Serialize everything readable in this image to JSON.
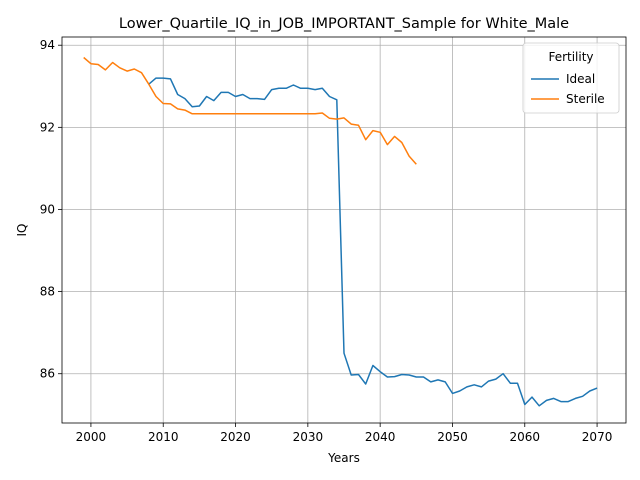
{
  "chart_data": {
    "type": "line",
    "title": "Lower_Quartile_IQ_in_JOB_IMPORTANT_Sample for White_Male",
    "xlabel": "Years",
    "ylabel": "IQ",
    "xlim": [
      1996,
      2074
    ],
    "ylim": [
      84.8,
      94.2
    ],
    "xticks": [
      2000,
      2010,
      2020,
      2030,
      2040,
      2050,
      2060,
      2070
    ],
    "yticks": [
      86,
      88,
      90,
      92,
      94
    ],
    "grid": true,
    "legend": {
      "title": "Fertility",
      "placement": "top-right"
    },
    "series": [
      {
        "name": "Ideal",
        "color": "#1f77b4",
        "x": [
          2008,
          2009,
          2010,
          2011,
          2012,
          2013,
          2014,
          2015,
          2016,
          2017,
          2018,
          2019,
          2020,
          2021,
          2022,
          2023,
          2024,
          2025,
          2026,
          2027,
          2028,
          2029,
          2030,
          2031,
          2032,
          2033,
          2034,
          2035,
          2036,
          2037,
          2038,
          2039,
          2040,
          2041,
          2042,
          2043,
          2044,
          2045,
          2046,
          2047,
          2048,
          2049,
          2050,
          2051,
          2052,
          2053,
          2054,
          2055,
          2056,
          2057,
          2058,
          2059,
          2060,
          2061,
          2062,
          2063,
          2064,
          2065,
          2066,
          2067,
          2068,
          2069,
          2070
        ],
        "values": [
          93.05,
          93.2,
          93.2,
          93.18,
          92.8,
          92.7,
          92.5,
          92.52,
          92.75,
          92.65,
          92.85,
          92.85,
          92.75,
          92.8,
          92.7,
          92.7,
          92.68,
          92.92,
          92.95,
          92.95,
          93.03,
          92.95,
          92.95,
          92.92,
          92.95,
          92.75,
          92.67,
          86.5,
          85.97,
          85.98,
          85.75,
          86.2,
          86.05,
          85.92,
          85.93,
          85.98,
          85.97,
          85.92,
          85.92,
          85.8,
          85.85,
          85.8,
          85.52,
          85.58,
          85.68,
          85.73,
          85.68,
          85.82,
          85.87,
          86.0,
          85.77,
          85.77,
          85.25,
          85.43,
          85.22,
          85.35,
          85.4,
          85.32,
          85.32,
          85.4,
          85.45,
          85.58,
          85.65
        ]
      },
      {
        "name": "Sterile",
        "color": "#ff7f0e",
        "x": [
          1999,
          2000,
          2001,
          2002,
          2003,
          2004,
          2005,
          2006,
          2007,
          2008,
          2009,
          2010,
          2011,
          2012,
          2013,
          2014,
          2015,
          2016,
          2017,
          2018,
          2019,
          2020,
          2021,
          2022,
          2023,
          2024,
          2025,
          2026,
          2027,
          2028,
          2029,
          2030,
          2031,
          2032,
          2033,
          2034,
          2035,
          2036,
          2037,
          2038,
          2039,
          2040,
          2041,
          2042,
          2043,
          2044,
          2045
        ],
        "values": [
          93.7,
          93.55,
          93.53,
          93.4,
          93.58,
          93.45,
          93.37,
          93.42,
          93.33,
          93.05,
          92.75,
          92.58,
          92.57,
          92.45,
          92.42,
          92.33,
          92.33,
          92.33,
          92.33,
          92.33,
          92.33,
          92.33,
          92.33,
          92.33,
          92.33,
          92.33,
          92.33,
          92.33,
          92.33,
          92.33,
          92.33,
          92.33,
          92.33,
          92.35,
          92.22,
          92.2,
          92.23,
          92.08,
          92.05,
          91.7,
          91.92,
          91.88,
          91.58,
          91.78,
          91.63,
          91.3,
          91.1
        ]
      }
    ]
  }
}
